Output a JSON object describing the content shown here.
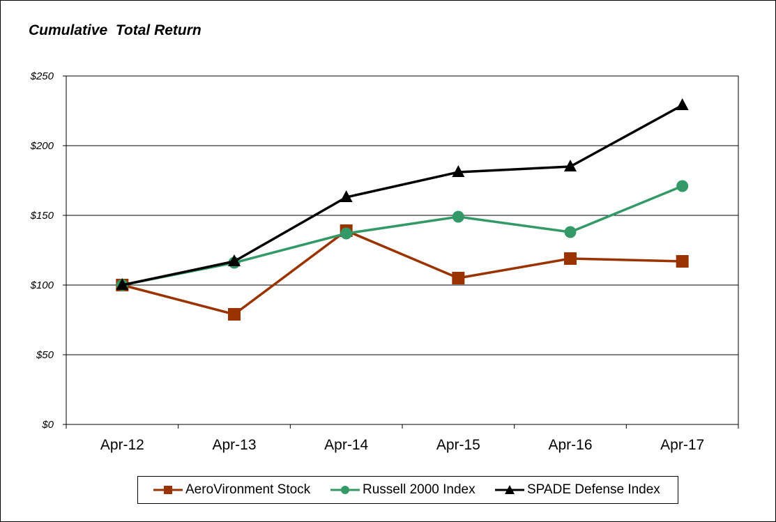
{
  "chart_data": {
    "type": "line",
    "title": "Cumulative  Total Return",
    "xlabel": "",
    "ylabel": "",
    "categories": [
      "Apr-12",
      "Apr-13",
      "Apr-14",
      "Apr-15",
      "Apr-16",
      "Apr-17"
    ],
    "y_ticks": [
      "$0",
      "$50",
      "$100",
      "$150",
      "$200",
      "$250"
    ],
    "y_tick_values": [
      0,
      50,
      100,
      150,
      200,
      250
    ],
    "ylim": [
      0,
      250
    ],
    "grid": true,
    "legend_position": "bottom",
    "series": [
      {
        "name": "AeroVironment Stock",
        "color": "#993300",
        "marker": "square",
        "values": [
          100,
          79,
          139,
          105,
          119,
          117
        ]
      },
      {
        "name": "Russell 2000 Index",
        "color": "#339966",
        "marker": "circle",
        "values": [
          100,
          116,
          137,
          149,
          138,
          171
        ]
      },
      {
        "name": "SPADE Defense Index",
        "color": "#000000",
        "marker": "triangle",
        "values": [
          100,
          117,
          163,
          181,
          185,
          229
        ]
      }
    ]
  }
}
